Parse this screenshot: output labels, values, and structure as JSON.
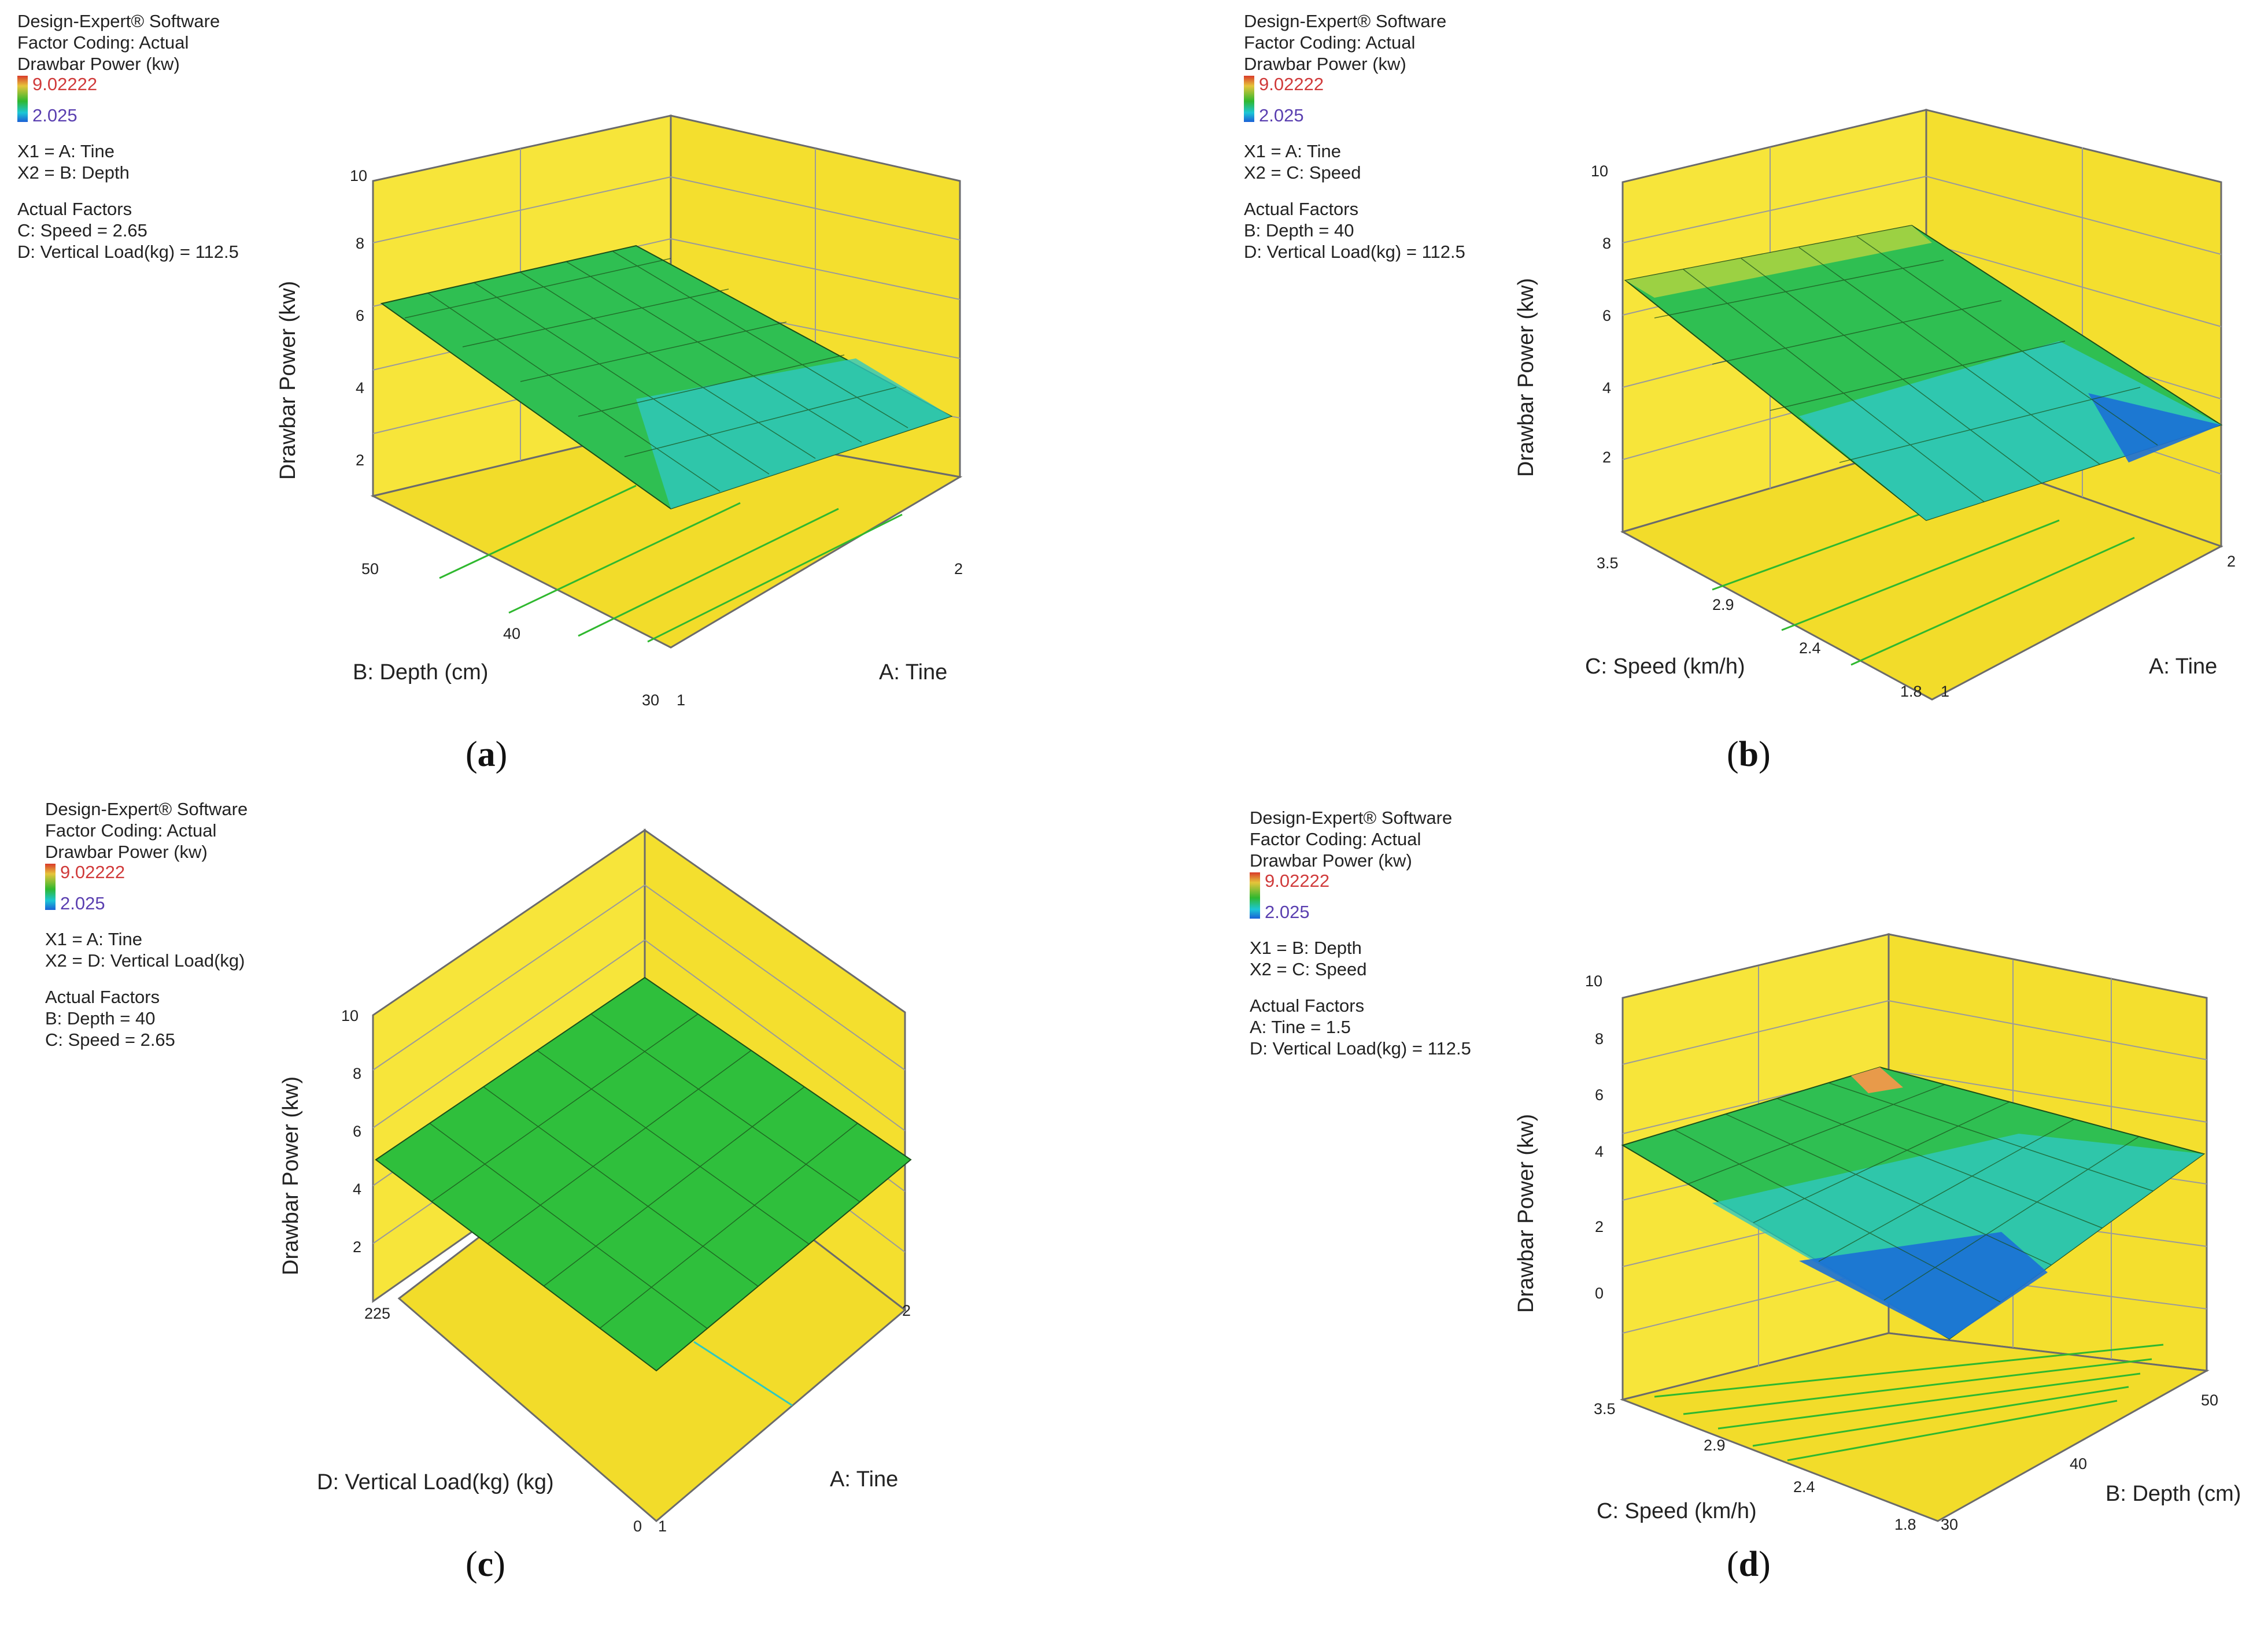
{
  "legend_common": {
    "software": "Design-Expert® Software",
    "coding": "Factor Coding: Actual",
    "response": "Drawbar Power (kw)",
    "max": "9.02222",
    "min": "2.025",
    "actual_factors_label": "Actual Factors"
  },
  "colors": {
    "wall": "#f7e53a",
    "wall_edge": "#6b6b6b",
    "grid": "#9a9a9a"
  },
  "chart_data": [
    {
      "id": "a",
      "type": "surface3d",
      "caption": "a",
      "x1": "X1 = A: Tine",
      "x2": "X2 = B: Depth",
      "fixed": [
        "C: Speed = 2.65",
        "D: Vertical Load(kg) = 112.5"
      ],
      "zlabel": "Drawbar Power (kw)",
      "zticks": [
        "2",
        "4",
        "6",
        "8",
        "10"
      ],
      "zrange": [
        0,
        10
      ],
      "right_axis": {
        "label": "A: Tine",
        "min": "1",
        "max": "2"
      },
      "left_axis": {
        "label": "B: Depth (cm)",
        "min": "30",
        "mid": "40",
        "max": "50"
      },
      "surface_corners": {
        "A1_Bmin": 3.4,
        "A1_Bmax": 6.6,
        "A2_Bmin": 4.3,
        "A2_Bmax": 6.9
      }
    },
    {
      "id": "b",
      "type": "surface3d",
      "caption": "b",
      "x1": "X1 = A: Tine",
      "x2": "X2 = C: Speed",
      "fixed": [
        "B: Depth = 40",
        "D: Vertical Load(kg) = 112.5"
      ],
      "zlabel": "Drawbar Power (kw)",
      "zticks": [
        "2",
        "4",
        "6",
        "8",
        "10"
      ],
      "zrange": [
        0,
        10
      ],
      "right_axis": {
        "label": "A: Tine",
        "min": "1",
        "max": "2"
      },
      "left_axis": {
        "label": "C: Speed (km/h)",
        "min": "1.8",
        "mid": "2.4",
        "mid2": "2.9",
        "max": "3.5"
      },
      "surface_corners": {
        "A1_Cmin": 3.5,
        "A1_Cmax": 7.4,
        "A2_Cmin": 2.3,
        "A2_Cmax": 7.9
      }
    },
    {
      "id": "c",
      "type": "surface3d",
      "caption": "c",
      "x1": "X1 = A: Tine",
      "x2": "X2 = D: Vertical Load(kg)",
      "fixed": [
        "B: Depth = 40",
        "C: Speed = 2.65"
      ],
      "zlabel": "Drawbar Power (kw)",
      "zticks": [
        "2",
        "4",
        "6",
        "8",
        "10"
      ],
      "zrange": [
        0,
        10
      ],
      "right_axis": {
        "label": "A: Tine",
        "min": "1",
        "max": "2"
      },
      "left_axis": {
        "label": "D: Vertical Load(kg) (kg)",
        "min": "0",
        "max": "225"
      },
      "surface_corners": {
        "A1_Dmin": 5.0,
        "A1_Dmax": 5.2,
        "A2_Dmin": 5.1,
        "A2_Dmax": 5.3
      }
    },
    {
      "id": "d",
      "type": "surface3d",
      "caption": "d",
      "x1": "X1 = B: Depth",
      "x2": "X2 = C: Speed",
      "fixed": [
        "A: Tine = 1.5",
        "D: Vertical Load(kg) = 112.5"
      ],
      "zlabel": "Drawbar Power (kw)",
      "zticks": [
        "0",
        "2",
        "4",
        "6",
        "8",
        "10"
      ],
      "zrange": [
        0,
        10
      ],
      "right_axis": {
        "label": "B: Depth (cm)",
        "min": "30",
        "mid": "40",
        "max": "50"
      },
      "left_axis": {
        "label": "C: Speed (km/h)",
        "min": "1.8",
        "mid": "2.4",
        "mid2": "2.9",
        "max": "3.5"
      },
      "surface_corners": {
        "B30_Cmin": 2.0,
        "B30_Cmax": 5.5,
        "B50_Cmin": 5.5,
        "B50_Cmax": 9.0
      }
    }
  ]
}
